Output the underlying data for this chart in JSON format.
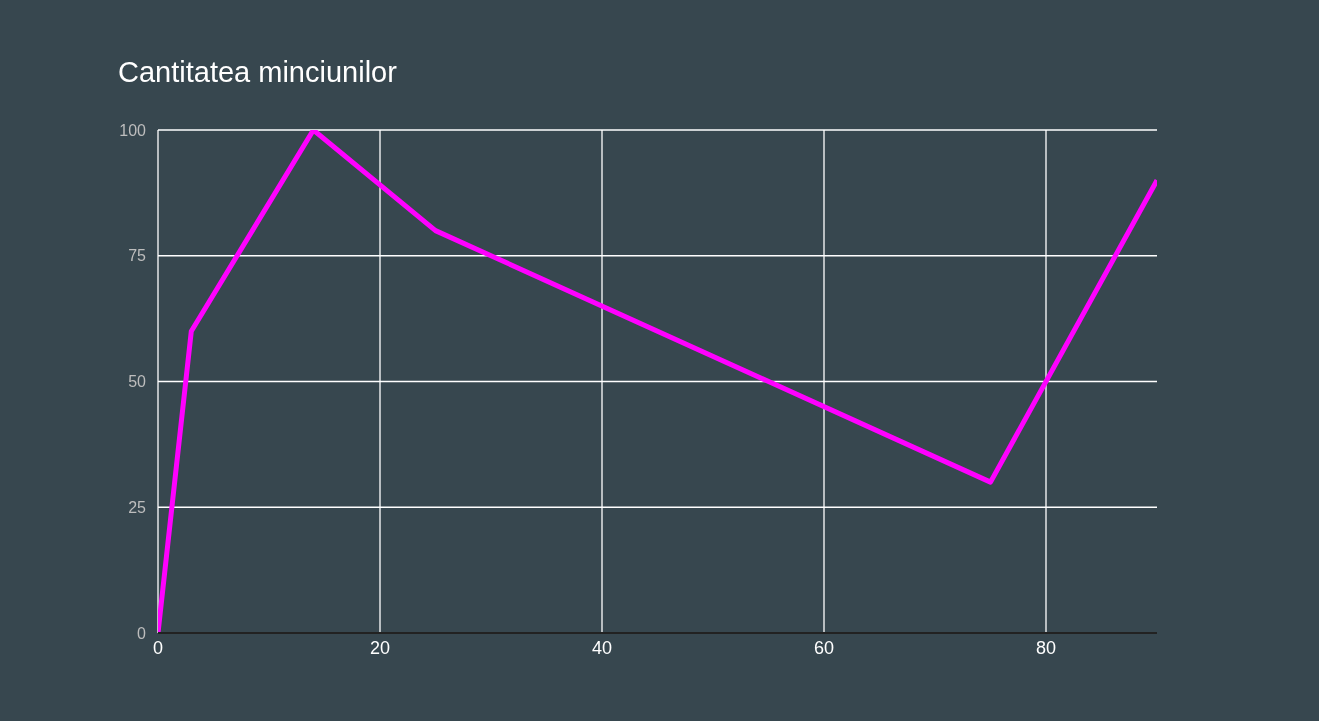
{
  "chart_data": {
    "type": "line",
    "title": "Cantitatea minciunilor",
    "x": [
      0,
      3,
      14,
      25,
      75,
      90
    ],
    "series": [
      {
        "color": "#ff00ff",
        "values": [
          0,
          60,
          100,
          80,
          30,
          90
        ]
      }
    ],
    "xlim": [
      0,
      90
    ],
    "xticks": [
      0,
      20,
      40,
      60,
      80
    ],
    "ylim": [
      0,
      100
    ],
    "yticks": [
      0,
      25,
      50,
      75,
      100
    ],
    "grid": true,
    "marker": "none",
    "line_style": "solid"
  }
}
